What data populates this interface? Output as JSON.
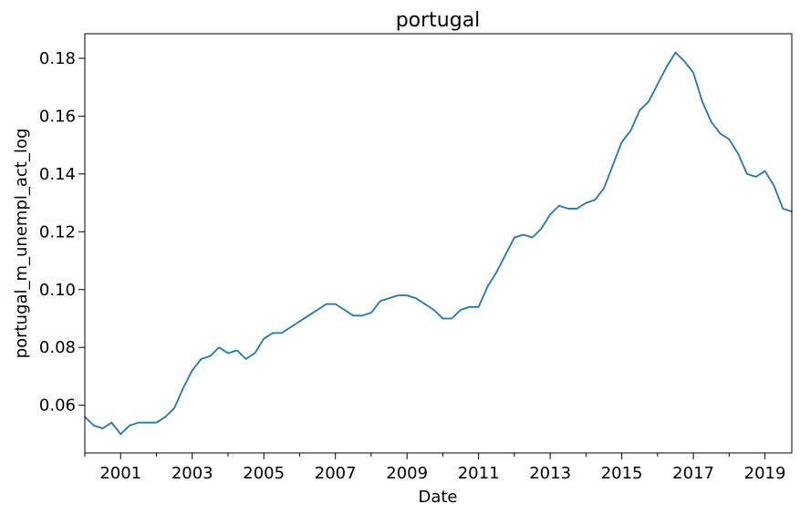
{
  "chart_data": {
    "type": "line",
    "title": "portugal",
    "xlabel": "Date",
    "ylabel": "portugal_m_unempl_act_log",
    "xlim": [
      "2000-01",
      "2019-10"
    ],
    "ylim": [
      0.0435,
      0.1885
    ],
    "x_ticks": [
      "2001",
      "2003",
      "2005",
      "2007",
      "2009",
      "2011",
      "2013",
      "2015",
      "2017",
      "2019"
    ],
    "y_ticks": [
      "0.06",
      "0.08",
      "0.10",
      "0.12",
      "0.14",
      "0.16",
      "0.18"
    ],
    "grid": false,
    "legend": "none",
    "colors": {
      "line": "#1f77b4"
    },
    "series": [
      {
        "x": [
          "2000-01",
          "2000-04",
          "2000-07",
          "2000-10",
          "2001-01",
          "2001-04",
          "2001-07",
          "2001-10",
          "2002-01",
          "2002-04",
          "2002-07",
          "2002-10",
          "2003-01",
          "2003-04",
          "2003-07",
          "2003-10",
          "2004-01",
          "2004-04",
          "2004-07",
          "2004-10",
          "2005-01",
          "2005-04",
          "2005-07",
          "2005-10",
          "2006-01",
          "2006-04",
          "2006-07",
          "2006-10",
          "2007-01",
          "2007-04",
          "2007-07",
          "2007-10",
          "2008-01",
          "2008-04",
          "2008-07",
          "2008-10",
          "2009-01",
          "2009-04",
          "2009-07",
          "2009-10",
          "2010-01",
          "2010-04",
          "2010-07",
          "2010-10",
          "2011-01",
          "2011-04",
          "2011-07",
          "2011-10",
          "2012-01",
          "2012-04",
          "2012-07",
          "2012-10",
          "2013-01",
          "2013-04",
          "2013-07",
          "2013-10",
          "2014-01",
          "2014-04",
          "2014-07",
          "2014-10",
          "2015-01",
          "2015-04",
          "2015-07",
          "2015-10",
          "2016-01",
          "2016-04",
          "2016-07",
          "2016-10",
          "2017-01",
          "2017-04",
          "2017-07",
          "2017-10",
          "2018-01",
          "2018-04",
          "2018-07",
          "2018-10",
          "2019-01",
          "2019-04",
          "2019-07",
          "2019-10"
        ],
        "y": [
          0.056,
          0.053,
          0.052,
          0.054,
          0.05,
          0.053,
          0.054,
          0.054,
          0.054,
          0.056,
          0.059,
          0.066,
          0.072,
          0.076,
          0.077,
          0.08,
          0.078,
          0.079,
          0.076,
          0.078,
          0.083,
          0.085,
          0.085,
          0.087,
          0.089,
          0.091,
          0.093,
          0.095,
          0.095,
          0.093,
          0.091,
          0.091,
          0.092,
          0.096,
          0.097,
          0.098,
          0.098,
          0.097,
          0.095,
          0.093,
          0.09,
          0.09,
          0.093,
          0.094,
          0.094,
          0.101,
          0.106,
          0.112,
          0.118,
          0.119,
          0.118,
          0.121,
          0.126,
          0.129,
          0.128,
          0.128,
          0.13,
          0.131,
          0.135,
          0.143,
          0.151,
          0.155,
          0.162,
          0.165,
          0.171,
          0.177,
          0.182,
          0.179,
          0.175,
          0.165,
          0.158,
          0.154,
          0.152,
          0.147,
          0.14,
          0.139,
          0.141,
          0.136,
          0.128,
          0.127
        ]
      }
    ]
  }
}
